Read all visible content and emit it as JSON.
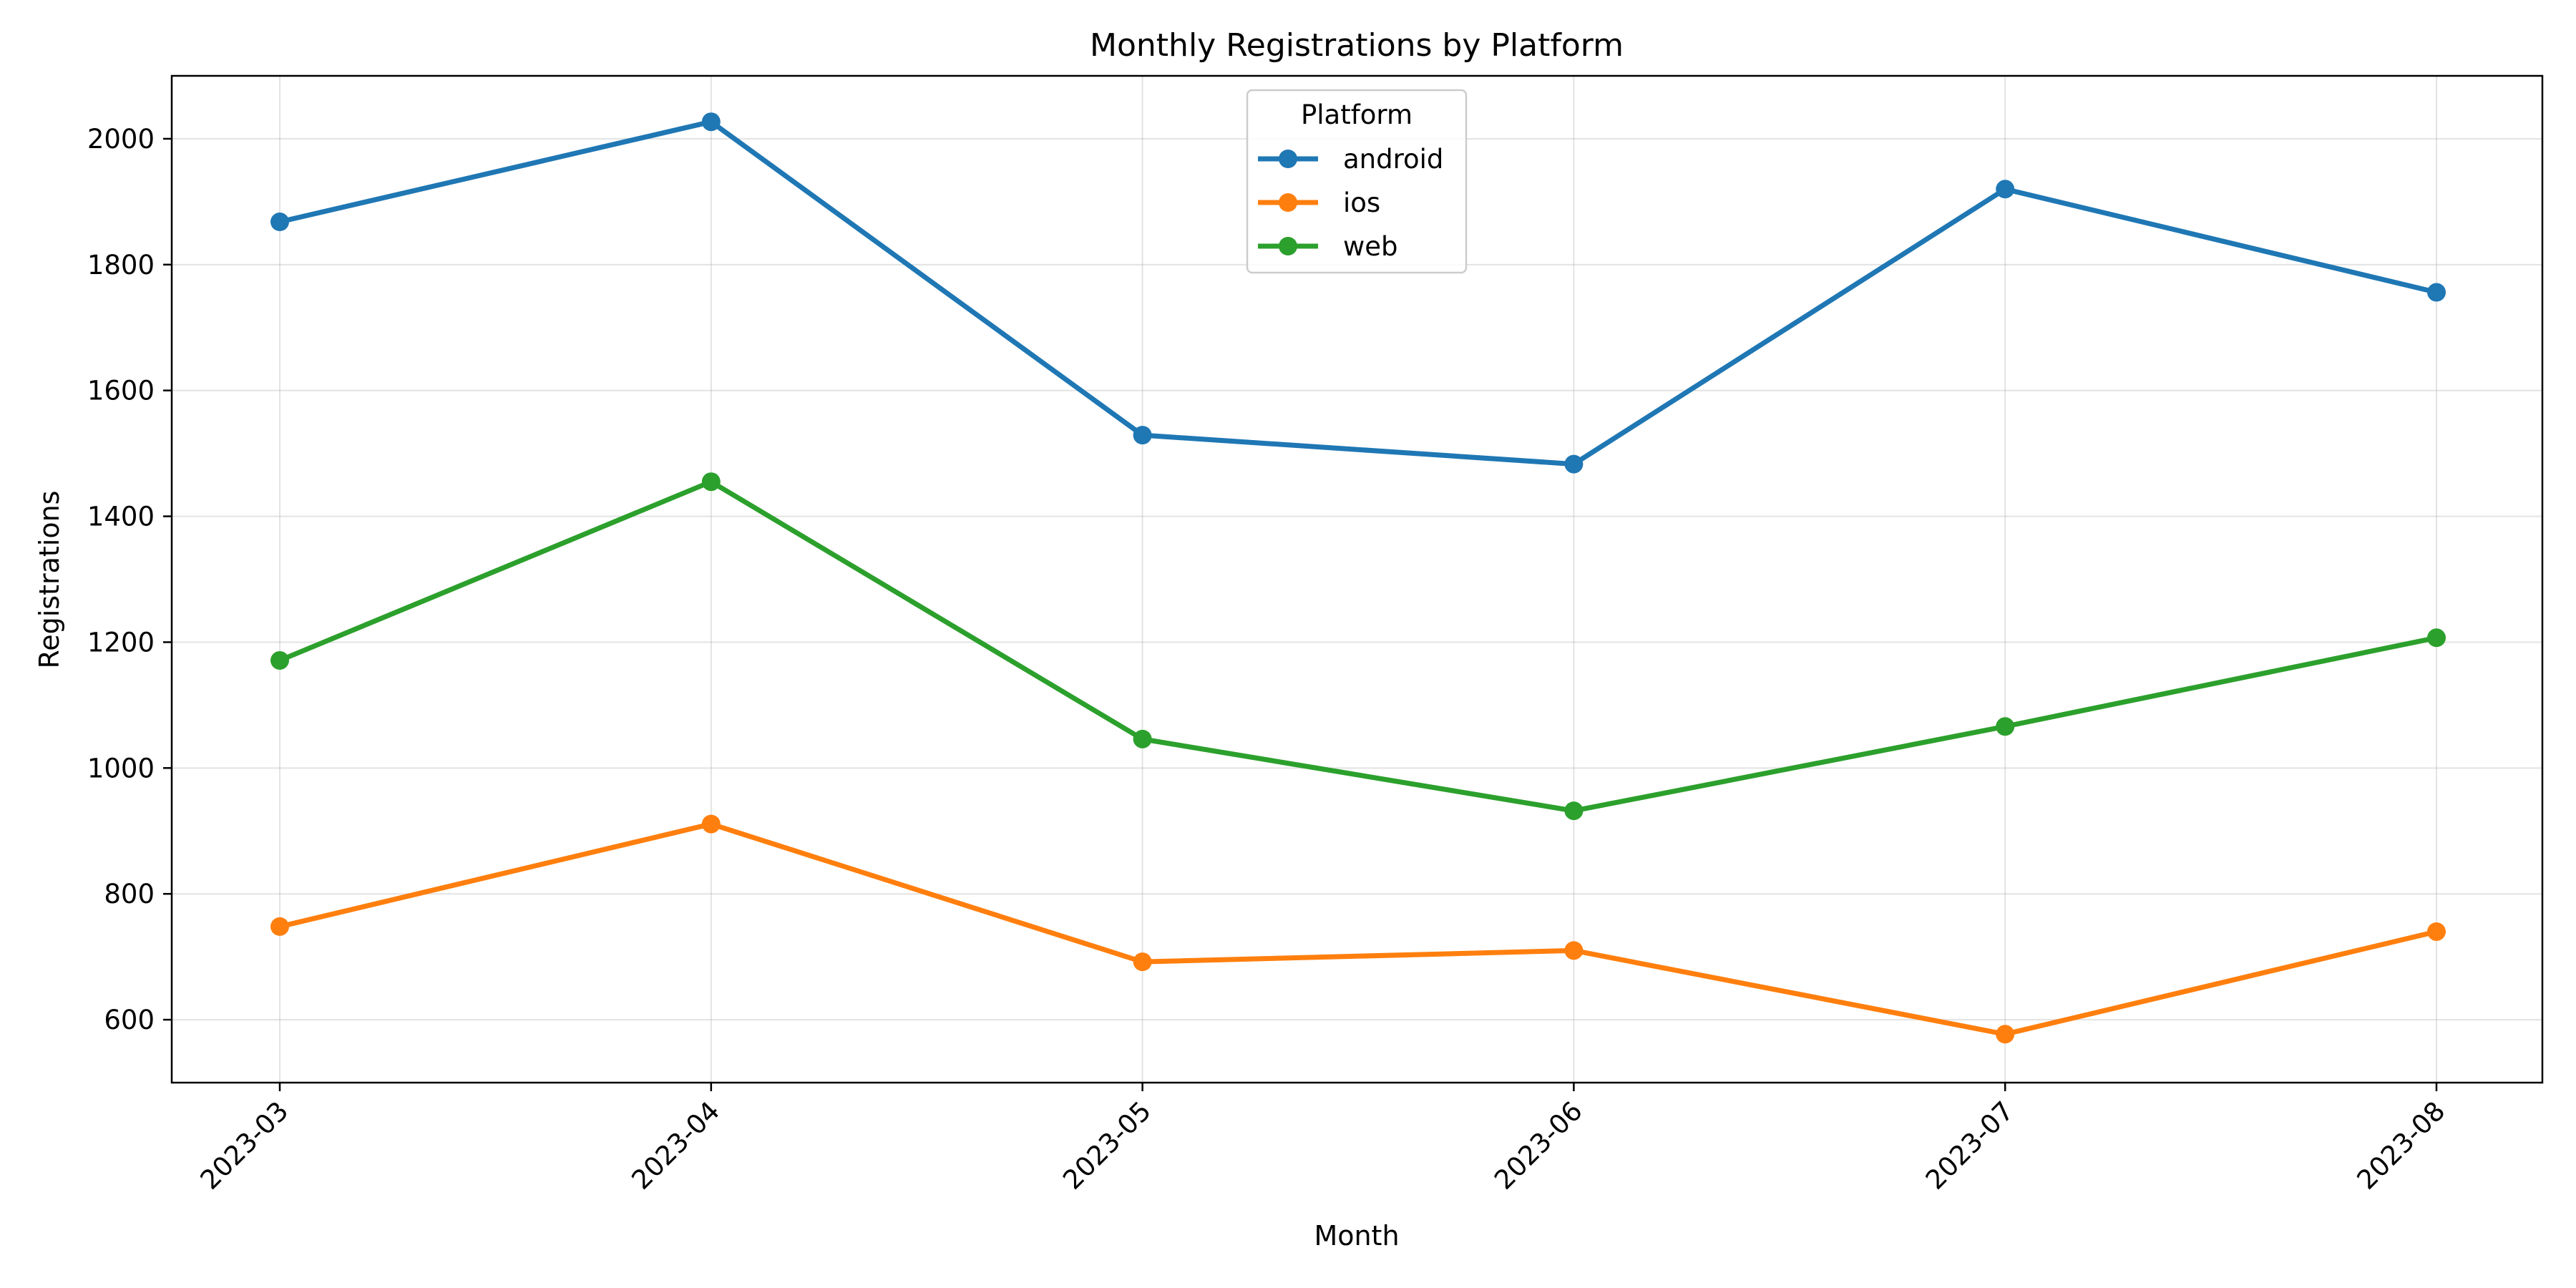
{
  "chart_data": {
    "type": "line",
    "title": "Monthly Registrations by Platform",
    "xlabel": "Month",
    "ylabel": "Registrations",
    "categories": [
      "2023-03",
      "2023-04",
      "2023-05",
      "2023-06",
      "2023-07",
      "2023-08"
    ],
    "ylim": [
      500,
      2100
    ],
    "yticks": [
      600,
      800,
      1000,
      1200,
      1400,
      1600,
      1800,
      2000
    ],
    "grid": true,
    "legend": {
      "title": "Platform",
      "placement": "top-center"
    },
    "series": [
      {
        "name": "android",
        "color": "#1f77b4",
        "values": [
          1868,
          2027,
          1529,
          1483,
          1920,
          1756
        ]
      },
      {
        "name": "ios",
        "color": "#ff7f0e",
        "values": [
          748,
          911,
          692,
          710,
          577,
          740
        ]
      },
      {
        "name": "web",
        "color": "#2ca02c",
        "values": [
          1171,
          1455,
          1046,
          932,
          1066,
          1207
        ]
      }
    ]
  }
}
